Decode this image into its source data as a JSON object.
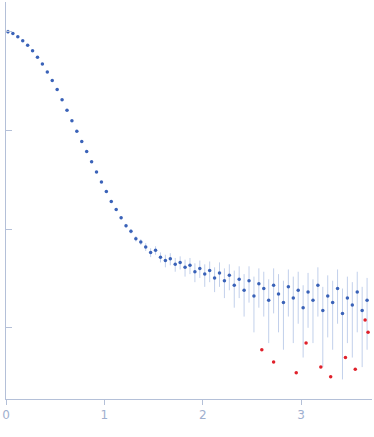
{
  "chart_data": {
    "type": "scatter",
    "log": "y",
    "grid": false,
    "marker": "circle",
    "tick_labels": "x",
    "xlim": [
      0,
      3.72
    ],
    "ylim": [
      0.0019,
      20
    ],
    "xticks": [
      0,
      1,
      2,
      3
    ],
    "yticks": [
      0.01,
      0.1,
      1,
      10
    ],
    "series": [
      {
        "color": "#3a62b8",
        "x": [
          0.02,
          0.07,
          0.12,
          0.17,
          0.22,
          0.27,
          0.32,
          0.37,
          0.42,
          0.47,
          0.52,
          0.57,
          0.62,
          0.67,
          0.72,
          0.77,
          0.82,
          0.87,
          0.92,
          0.97,
          1.02,
          1.07,
          1.12,
          1.17,
          1.22,
          1.27,
          1.32,
          1.37,
          1.42,
          1.47,
          1.52,
          1.57,
          1.62,
          1.67,
          1.72,
          1.77,
          1.82,
          1.87,
          1.92,
          1.97,
          2.02,
          2.07,
          2.12,
          2.17,
          2.22,
          2.27,
          2.32,
          2.37,
          2.42,
          2.47,
          2.52,
          2.57,
          2.62,
          2.67,
          2.72,
          2.77,
          2.82,
          2.87,
          2.92,
          2.97,
          3.02,
          3.07,
          3.12,
          3.17,
          3.22,
          3.27,
          3.32,
          3.37,
          3.42,
          3.47,
          3.52,
          3.57,
          3.62,
          3.67
        ],
        "values": [
          10.0,
          9.6,
          8.9,
          8.1,
          7.3,
          6.4,
          5.5,
          4.7,
          3.9,
          3.2,
          2.6,
          2.05,
          1.6,
          1.25,
          0.98,
          0.77,
          0.61,
          0.48,
          0.38,
          0.3,
          0.24,
          0.19,
          0.158,
          0.13,
          0.108,
          0.095,
          0.08,
          0.074,
          0.066,
          0.058,
          0.061,
          0.052,
          0.048,
          0.05,
          0.044,
          0.046,
          0.041,
          0.043,
          0.037,
          0.04,
          0.035,
          0.038,
          0.032,
          0.036,
          0.03,
          0.034,
          0.027,
          0.031,
          0.024,
          0.03,
          0.021,
          0.028,
          0.025,
          0.019,
          0.027,
          0.022,
          0.018,
          0.026,
          0.02,
          0.024,
          0.016,
          0.023,
          0.019,
          0.027,
          0.015,
          0.021,
          0.018,
          0.025,
          0.014,
          0.02,
          0.017,
          0.023,
          0.015,
          0.019
        ],
        "errors": [
          0.5,
          0.3,
          0.2,
          0.15,
          0.12,
          0.1,
          0.08,
          0.07,
          0.06,
          0.05,
          0.04,
          0.03,
          0.025,
          0.02,
          0.016,
          0.013,
          0.011,
          0.009,
          0.008,
          0.007,
          0.006,
          0.006,
          0.005,
          0.005,
          0.005,
          0.005,
          0.005,
          0.005,
          0.006,
          0.006,
          0.006,
          0.006,
          0.007,
          0.007,
          0.007,
          0.007,
          0.008,
          0.008,
          0.008,
          0.008,
          0.009,
          0.009,
          0.009,
          0.01,
          0.01,
          0.01,
          0.011,
          0.011,
          0.011,
          0.012,
          0.012,
          0.012,
          0.012,
          0.012,
          0.013,
          0.013,
          0.012,
          0.013,
          0.013,
          0.013,
          0.011,
          0.013,
          0.012,
          0.014,
          0.011,
          0.013,
          0.012,
          0.014,
          0.011,
          0.013,
          0.012,
          0.014,
          0.011,
          0.013
        ]
      },
      {
        "color": "#e0202a",
        "x": [
          2.6,
          2.72,
          2.95,
          3.05,
          3.2,
          3.3,
          3.45,
          3.55,
          3.65,
          3.68
        ],
        "values": [
          0.006,
          0.0045,
          0.0035,
          0.007,
          0.004,
          0.0032,
          0.005,
          0.0038,
          0.012,
          0.009
        ]
      }
    ]
  }
}
